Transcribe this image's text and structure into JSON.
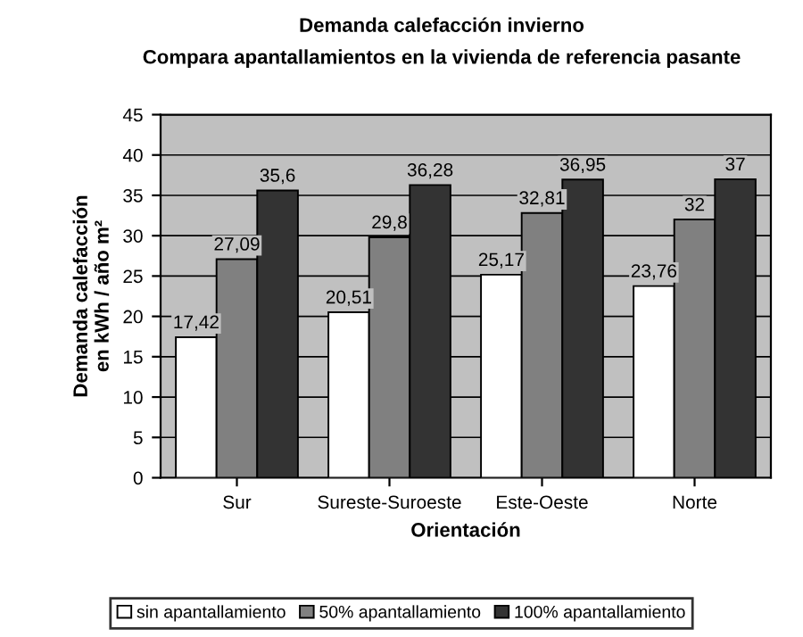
{
  "chart_data": {
    "type": "bar",
    "title": "Demanda calefacción invierno",
    "subtitle": "Compara apantallamientos en la vivienda de referencia pasante",
    "xlabel": "Orientación",
    "ylabel": "Demanda calefacción\nen kWh / año m²",
    "categories": [
      "Sur",
      "Sureste-Suroeste",
      "Este-Oeste",
      "Norte"
    ],
    "series": [
      {
        "name": "sin apantallamiento",
        "color": "#ffffff",
        "values": [
          17.42,
          20.51,
          25.17,
          23.76
        ],
        "value_labels": [
          "17,42",
          "20,51",
          "25,17",
          "23,76"
        ]
      },
      {
        "name": "50% apantallamiento",
        "color": "#808080",
        "values": [
          27.09,
          29.8,
          32.81,
          32
        ],
        "value_labels": [
          "27,09",
          "29,8",
          "32,81",
          "32"
        ]
      },
      {
        "name": "100% apantallamiento",
        "color": "#333333",
        "values": [
          35.6,
          36.28,
          36.95,
          37
        ],
        "value_labels": [
          "35,6",
          "36,28",
          "36,95",
          "37"
        ]
      }
    ],
    "ylim": [
      0,
      45
    ],
    "yticks": [
      0,
      5,
      10,
      15,
      20,
      25,
      30,
      35,
      40,
      45
    ],
    "grid": "y",
    "legend": "bottom"
  }
}
